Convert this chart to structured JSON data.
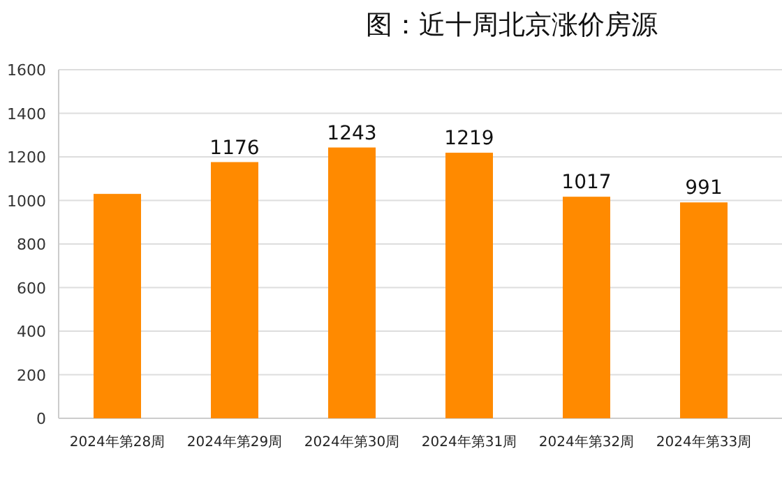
{
  "chart_data": {
    "type": "bar",
    "title": "图：近十周北京涨价房源",
    "categories": [
      "2024年第28周",
      "2024年第29周",
      "2024年第30周",
      "2024年第31周",
      "2024年第32周",
      "2024年第33周"
    ],
    "values": [
      1030,
      1176,
      1243,
      1219,
      1017,
      991
    ],
    "value_labels": [
      null,
      "1176",
      "1243",
      "1219",
      "1017",
      "991"
    ],
    "color": "#ff8a00",
    "ylim": [
      0,
      1600
    ],
    "yticks": [
      0,
      200,
      400,
      600,
      800,
      1000,
      1200,
      1400,
      1600
    ],
    "grid": "y"
  }
}
